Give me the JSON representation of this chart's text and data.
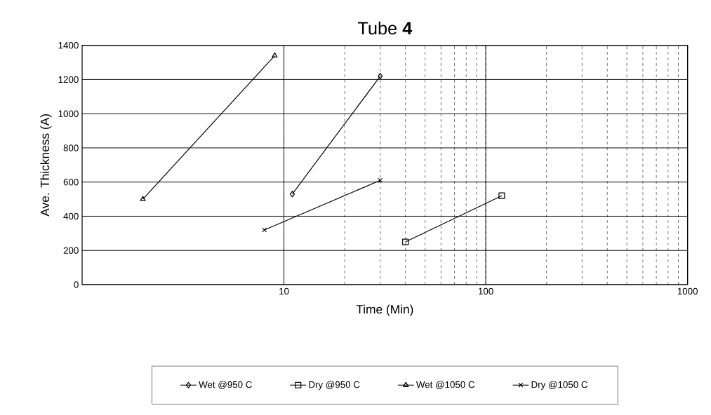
{
  "chart_data": {
    "type": "line",
    "title": "Tube **4**",
    "xlabel": "Time (Min)",
    "ylabel": "Ave. Thickness (A)",
    "log": "x",
    "xlim": [
      1,
      1000
    ],
    "xticks": [
      10,
      100,
      1000
    ],
    "ylim": [
      0,
      1400
    ],
    "yticks": [
      0,
      200,
      400,
      600,
      800,
      1000,
      1200,
      1400
    ],
    "grid": true,
    "legend": "bottom",
    "line_style": "solid",
    "series": [
      {
        "name": "Wet @950 C",
        "color": "#000000",
        "marker": "diamond",
        "x": [
          11,
          30
        ],
        "values": [
          530,
          1220
        ]
      },
      {
        "name": "Dry @950 C",
        "color": "#000000",
        "marker": "square",
        "x": [
          40,
          120
        ],
        "values": [
          250,
          520
        ]
      },
      {
        "name": "Wet @1050 C",
        "color": "#000000",
        "marker": "triangle",
        "x": [
          2,
          9
        ],
        "values": [
          500,
          1340
        ]
      },
      {
        "name": "Dry @1050 C",
        "color": "#000000",
        "marker": "cross",
        "x": [
          8,
          30
        ],
        "values": [
          320,
          610
        ]
      }
    ]
  }
}
